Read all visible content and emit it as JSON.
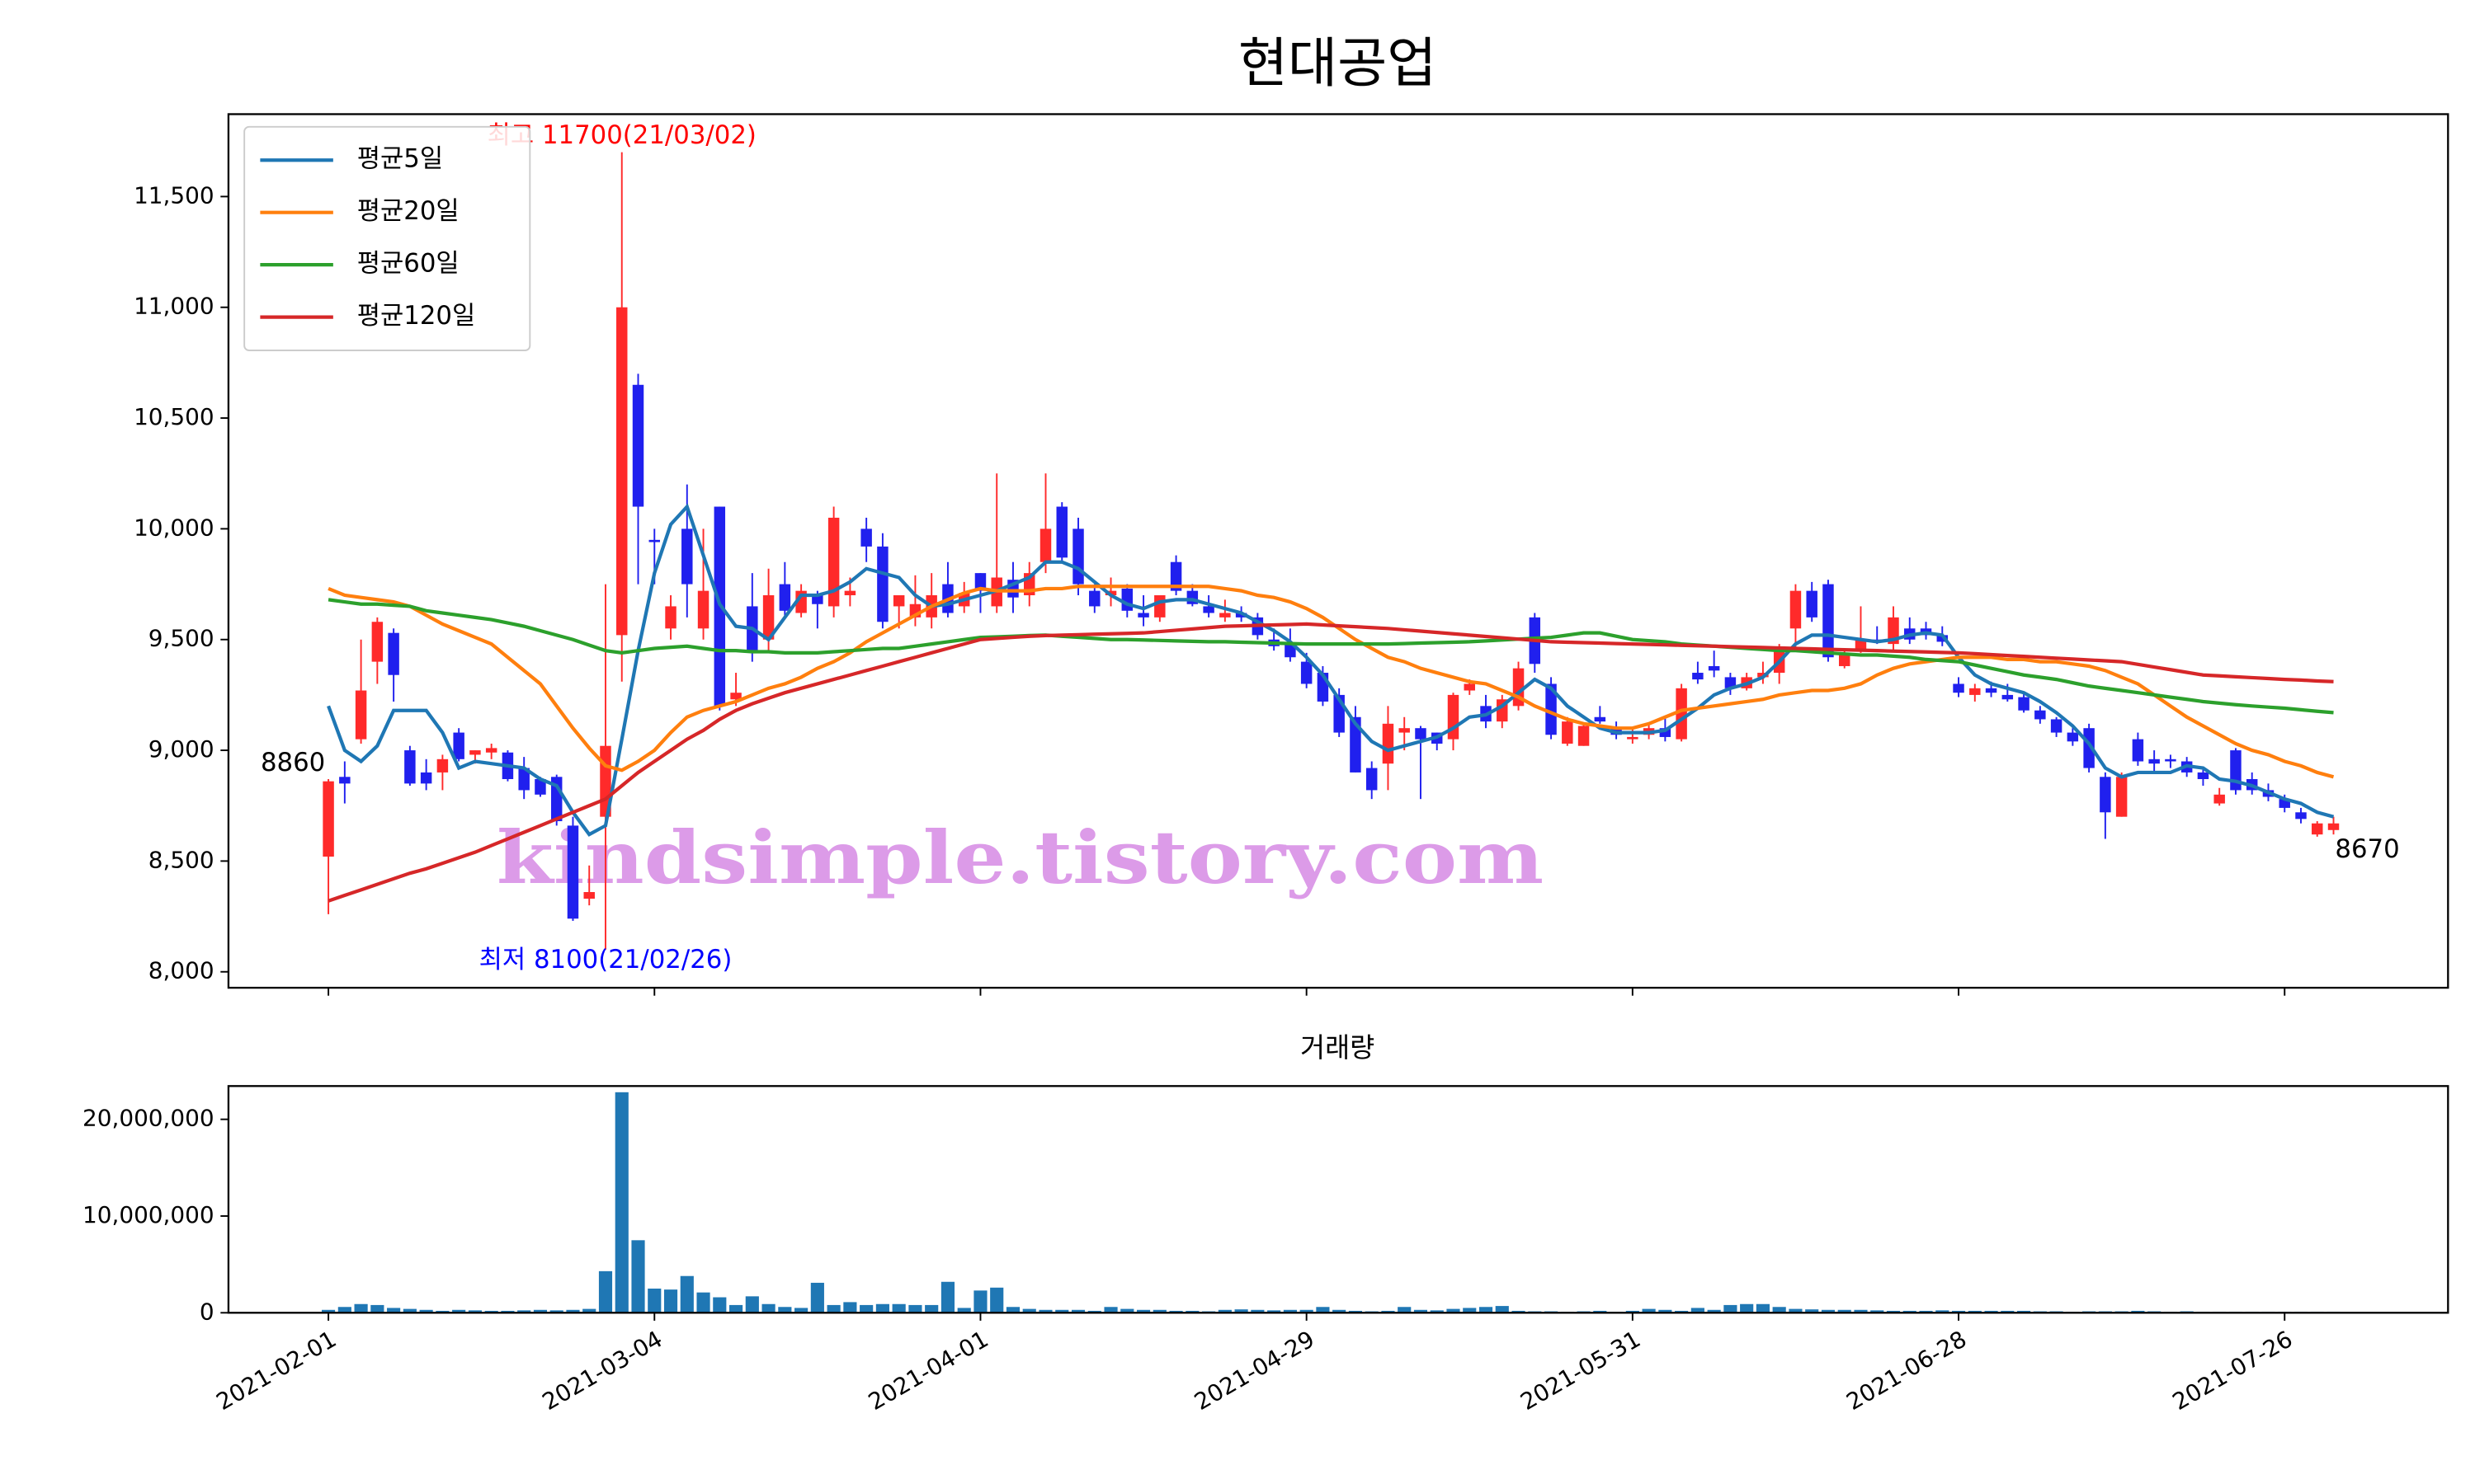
{
  "chart_data": {
    "type": "candlestick",
    "title": "현대공업",
    "categories": [
      "2021-02-01",
      null,
      null,
      null,
      null,
      null,
      null,
      null,
      null,
      null,
      null,
      null,
      null,
      null,
      null,
      null,
      null,
      null,
      null,
      null,
      "2021-03-04",
      null,
      null,
      null,
      null,
      null,
      null,
      null,
      null,
      null,
      null,
      null,
      null,
      null,
      null,
      null,
      null,
      null,
      null,
      null,
      "2021-04-01",
      null,
      null,
      null,
      null,
      null,
      null,
      null,
      null,
      null,
      null,
      null,
      null,
      null,
      null,
      null,
      null,
      null,
      null,
      null,
      "2021-04-29",
      null,
      null,
      null,
      null,
      null,
      null,
      null,
      null,
      null,
      null,
      null,
      null,
      null,
      null,
      null,
      null,
      null,
      null,
      null,
      "2021-05-31",
      null,
      null,
      null,
      null,
      null,
      null,
      null,
      null,
      null,
      null,
      null,
      null,
      null,
      null,
      null,
      null,
      null,
      null,
      null,
      "2021-06-28",
      null,
      null,
      null,
      null,
      null,
      null,
      null,
      null,
      null,
      null,
      null,
      null,
      null,
      null,
      null,
      null,
      null,
      null,
      null,
      "2021-07-26",
      null,
      null,
      null
    ],
    "open": [
      8520,
      8880,
      9050,
      9400,
      9530,
      9000,
      8900,
      8900,
      9080,
      8980,
      8990,
      8990,
      8920,
      8870,
      8880,
      8660,
      8330,
      8700,
      9520,
      10650,
      9950,
      9550,
      10000,
      9550,
      10100,
      9230,
      9650,
      9500,
      9750,
      9620,
      9700,
      9650,
      9700,
      10000,
      9920,
      9650,
      9600,
      9600,
      9750,
      9650,
      9800,
      9650,
      9770,
      9700,
      9850,
      10100,
      10000,
      9720,
      9700,
      9730,
      9620,
      9600,
      9850,
      9720,
      9650,
      9600,
      9620,
      9600,
      9500,
      9480,
      9400,
      9350,
      9250,
      9150,
      8920,
      8940,
      9080,
      9100,
      9080,
      9050,
      9270,
      9200,
      9130,
      9200,
      9600,
      9300,
      9030,
      9020,
      9150,
      9100,
      9050,
      9070,
      9100,
      9050,
      9350,
      9380,
      9330,
      9280,
      9330,
      9350,
      9550,
      9720,
      9750,
      9380,
      9450,
      9500,
      9480,
      9550,
      9550,
      9520,
      9300,
      9250,
      9280,
      9250,
      9240,
      9180,
      9140,
      9080,
      9100,
      8880,
      8700,
      9050,
      8960,
      8960,
      8950,
      8900,
      8760,
      9000,
      8870,
      8820,
      8780,
      8720,
      8620,
      8640
    ],
    "high": [
      8870,
      8950,
      9500,
      9600,
      9550,
      9020,
      8960,
      8980,
      9100,
      9000,
      9030,
      9000,
      8970,
      8880,
      8890,
      8700,
      8480,
      9750,
      11700,
      10700,
      10000,
      9700,
      10200,
      10000,
      10100,
      9350,
      9800,
      9820,
      9850,
      9750,
      9720,
      10100,
      9780,
      10050,
      9980,
      9700,
      9790,
      9800,
      9850,
      9760,
      9800,
      10250,
      9850,
      9850,
      10250,
      10120,
      10050,
      9750,
      9780,
      9750,
      9700,
      9700,
      9880,
      9750,
      9700,
      9680,
      9650,
      9620,
      9550,
      9550,
      9440,
      9380,
      9280,
      9200,
      8950,
      9200,
      9150,
      9110,
      9080,
      9260,
      9320,
      9250,
      9250,
      9400,
      9620,
      9330,
      9150,
      9120,
      9200,
      9130,
      9100,
      9120,
      9150,
      9300,
      9400,
      9450,
      9350,
      9350,
      9400,
      9480,
      9750,
      9760,
      9770,
      9450,
      9650,
      9560,
      9650,
      9600,
      9580,
      9560,
      9330,
      9300,
      9310,
      9300,
      9260,
      9200,
      9150,
      9100,
      9120,
      8900,
      8900,
      9080,
      9000,
      8980,
      8970,
      8920,
      8830,
      9010,
      8900,
      8850,
      8800,
      8740,
      8680,
      8700
    ],
    "low": [
      8260,
      8760,
      9030,
      9300,
      9220,
      8840,
      8820,
      8820,
      8950,
      8940,
      8960,
      8860,
      8780,
      8790,
      8660,
      8230,
      8300,
      8100,
      9310,
      9750,
      9750,
      9500,
      9600,
      9500,
      9180,
      9200,
      9400,
      9450,
      9600,
      9600,
      9550,
      9600,
      9650,
      9850,
      9550,
      9550,
      9560,
      9550,
      9600,
      9620,
      9620,
      9620,
      9620,
      9650,
      9800,
      9850,
      9700,
      9620,
      9650,
      9600,
      9560,
      9580,
      9700,
      9650,
      9600,
      9580,
      9580,
      9500,
      9450,
      9400,
      9280,
      9200,
      9060,
      8900,
      8780,
      8820,
      9000,
      8780,
      9000,
      9000,
      9250,
      9100,
      9100,
      9180,
      9350,
      9050,
      9020,
      9020,
      9120,
      9050,
      9030,
      9050,
      9040,
      9040,
      9300,
      9330,
      9250,
      9270,
      9300,
      9300,
      9450,
      9580,
      9400,
      9370,
      9440,
      9480,
      9450,
      9480,
      9500,
      9470,
      9240,
      9220,
      9240,
      9220,
      9170,
      9120,
      9060,
      9020,
      8900,
      8600,
      8700,
      8930,
      8900,
      8920,
      8880,
      8840,
      8750,
      8800,
      8800,
      8770,
      8720,
      8670,
      8610,
      8620
    ],
    "close": [
      8860,
      8850,
      9270,
      9580,
      9340,
      8850,
      8850,
      8960,
      8960,
      9000,
      9010,
      8870,
      8820,
      8800,
      8680,
      8240,
      8360,
      9020,
      11000,
      10100,
      9940,
      9650,
      9750,
      9720,
      9200,
      9260,
      9450,
      9700,
      9630,
      9720,
      9660,
      10050,
      9720,
      9920,
      9580,
      9700,
      9660,
      9700,
      9620,
      9710,
      9720,
      9780,
      9690,
      9800,
      10000,
      9870,
      9750,
      9650,
      9720,
      9630,
      9600,
      9700,
      9720,
      9660,
      9620,
      9620,
      9600,
      9520,
      9470,
      9420,
      9300,
      9220,
      9080,
      8900,
      8820,
      9120,
      9100,
      9050,
      9030,
      9250,
      9300,
      9130,
      9230,
      9370,
      9390,
      9070,
      9130,
      9110,
      9130,
      9070,
      9060,
      9100,
      9060,
      9280,
      9320,
      9360,
      9280,
      9330,
      9350,
      9450,
      9720,
      9600,
      9420,
      9430,
      9500,
      9490,
      9600,
      9500,
      9520,
      9490,
      9260,
      9280,
      9260,
      9230,
      9180,
      9140,
      9080,
      9040,
      8920,
      8720,
      8880,
      8950,
      8940,
      8950,
      8900,
      8870,
      8800,
      8820,
      8820,
      8790,
      8740,
      8690,
      8670,
      8670
    ],
    "up_color": "#ff2a2a",
    "down_color": "#2020ee",
    "series": [
      {
        "name": "평균5일",
        "color": "#1f77b4",
        "values": [
          9200,
          9000,
          8950,
          9020,
          9180,
          9180,
          9180,
          9080,
          8920,
          8950,
          8940,
          8930,
          8920,
          8870,
          8840,
          8720,
          8620,
          8660,
          9050,
          9450,
          9800,
          10020,
          10100,
          9880,
          9660,
          9560,
          9550,
          9500,
          9600,
          9700,
          9700,
          9720,
          9760,
          9820,
          9800,
          9780,
          9700,
          9650,
          9660,
          9680,
          9700,
          9720,
          9750,
          9780,
          9850,
          9850,
          9820,
          9760,
          9700,
          9660,
          9640,
          9670,
          9680,
          9680,
          9660,
          9640,
          9620,
          9580,
          9540,
          9490,
          9420,
          9340,
          9230,
          9120,
          9040,
          9000,
          9020,
          9040,
          9060,
          9100,
          9150,
          9160,
          9200,
          9260,
          9320,
          9280,
          9200,
          9150,
          9100,
          9080,
          9080,
          9080,
          9090,
          9140,
          9190,
          9250,
          9280,
          9300,
          9330,
          9400,
          9480,
          9520,
          9520,
          9510,
          9500,
          9490,
          9500,
          9520,
          9530,
          9520,
          9420,
          9340,
          9300,
          9280,
          9260,
          9220,
          9170,
          9110,
          9030,
          8920,
          8880,
          8900,
          8900,
          8900,
          8930,
          8920,
          8870,
          8860,
          8840,
          8810,
          8780,
          8760,
          8720,
          8700
        ]
      },
      {
        "name": "평균20일",
        "color": "#ff7f0e",
        "values": [
          9730,
          9700,
          9690,
          9680,
          9670,
          9650,
          9610,
          9570,
          9540,
          9510,
          9480,
          9420,
          9360,
          9300,
          9200,
          9100,
          9010,
          8930,
          8910,
          8950,
          9000,
          9080,
          9150,
          9180,
          9200,
          9220,
          9250,
          9280,
          9300,
          9330,
          9370,
          9400,
          9440,
          9490,
          9530,
          9570,
          9610,
          9650,
          9680,
          9710,
          9730,
          9720,
          9720,
          9720,
          9730,
          9730,
          9740,
          9740,
          9740,
          9740,
          9740,
          9740,
          9740,
          9740,
          9740,
          9730,
          9720,
          9700,
          9690,
          9670,
          9640,
          9600,
          9550,
          9500,
          9460,
          9420,
          9400,
          9370,
          9350,
          9330,
          9310,
          9300,
          9270,
          9240,
          9200,
          9170,
          9140,
          9120,
          9110,
          9100,
          9100,
          9120,
          9150,
          9180,
          9190,
          9200,
          9210,
          9220,
          9230,
          9250,
          9260,
          9270,
          9270,
          9280,
          9300,
          9340,
          9370,
          9390,
          9400,
          9410,
          9420,
          9420,
          9420,
          9410,
          9410,
          9400,
          9400,
          9390,
          9380,
          9360,
          9330,
          9300,
          9250,
          9200,
          9150,
          9110,
          9070,
          9030,
          9000,
          8980,
          8950,
          8930,
          8900,
          8880
        ]
      },
      {
        "name": "평균60일",
        "color": "#2ca02c",
        "values": [
          9680,
          9670,
          9660,
          9660,
          9655,
          9650,
          9630,
          9620,
          9610,
          9600,
          9590,
          9575,
          9560,
          9540,
          9520,
          9500,
          9475,
          9450,
          9440,
          9450,
          9460,
          9465,
          9470,
          9460,
          9450,
          9450,
          9445,
          9445,
          9440,
          9440,
          9440,
          9445,
          9450,
          9455,
          9460,
          9460,
          9470,
          9480,
          9490,
          9500,
          9510,
          9512,
          9515,
          9518,
          9520,
          9515,
          9510,
          9505,
          9500,
          9500,
          9498,
          9496,
          9494,
          9492,
          9490,
          9490,
          9488,
          9486,
          9484,
          9482,
          9480,
          9480,
          9480,
          9480,
          9480,
          9480,
          9482,
          9484,
          9486,
          9488,
          9490,
          9494,
          9498,
          9502,
          9506,
          9510,
          9520,
          9530,
          9530,
          9515,
          9500,
          9495,
          9490,
          9480,
          9475,
          9470,
          9465,
          9460,
          9455,
          9450,
          9450,
          9445,
          9440,
          9435,
          9430,
          9430,
          9425,
          9420,
          9410,
          9405,
          9400,
          9385,
          9370,
          9355,
          9340,
          9330,
          9320,
          9305,
          9290,
          9280,
          9270,
          9260,
          9250,
          9240,
          9230,
          9220,
          9213,
          9206,
          9200,
          9195,
          9190,
          9183,
          9176,
          9170
        ]
      },
      {
        "name": "평균120일",
        "color": "#d62728",
        "values": [
          8320,
          8345,
          8370,
          8395,
          8420,
          8445,
          8465,
          8490,
          8515,
          8540,
          8570,
          8600,
          8630,
          8660,
          8690,
          8720,
          8750,
          8780,
          8840,
          8900,
          8950,
          9000,
          9050,
          9090,
          9140,
          9180,
          9210,
          9235,
          9260,
          9280,
          9300,
          9320,
          9340,
          9360,
          9380,
          9400,
          9420,
          9440,
          9460,
          9480,
          9500,
          9505,
          9510,
          9515,
          9518,
          9520,
          9522,
          9524,
          9526,
          9528,
          9530,
          9536,
          9542,
          9548,
          9554,
          9560,
          9562,
          9564,
          9566,
          9568,
          9570,
          9566,
          9562,
          9558,
          9554,
          9550,
          9544,
          9538,
          9532,
          9526,
          9520,
          9514,
          9508,
          9502,
          9496,
          9490,
          9488,
          9486,
          9484,
          9482,
          9480,
          9478,
          9476,
          9474,
          9472,
          9470,
          9468,
          9466,
          9464,
          9462,
          9460,
          9458,
          9456,
          9454,
          9452,
          9450,
          9448,
          9446,
          9444,
          9442,
          9440,
          9436,
          9432,
          9428,
          9424,
          9420,
          9416,
          9412,
          9408,
          9404,
          9400,
          9388,
          9376,
          9364,
          9352,
          9340,
          9336,
          9332,
          9328,
          9324,
          9320,
          9317,
          9313,
          9310
        ]
      }
    ],
    "legend": "upper left",
    "ylim": [
      7928,
      11872
    ],
    "yticks": [
      {
        "value": 8000,
        "label": "8,000"
      },
      {
        "value": 8500,
        "label": "8,500"
      },
      {
        "value": 9000,
        "label": "9,000"
      },
      {
        "value": 9500,
        "label": "9,500"
      },
      {
        "value": 10000,
        "label": "10,000"
      },
      {
        "value": 10500,
        "label": "10,500"
      },
      {
        "value": 11000,
        "label": "11,000"
      },
      {
        "value": 11500,
        "label": "11,500"
      }
    ],
    "annotations": [
      {
        "text": "최고 11700(21/03/02)",
        "color": "#ff0000",
        "anchor": "highest"
      },
      {
        "text": "최저 8100(21/02/26)",
        "color": "#0000ff",
        "anchor": "lowest"
      },
      {
        "text": "8860",
        "color": "#000000",
        "anchor": "first"
      },
      {
        "text": "8670",
        "color": "#000000",
        "anchor": "last"
      }
    ],
    "watermark": {
      "text": "kindsimple.tistory.com",
      "color": "#dc9be8"
    },
    "volume": {
      "title": "거래량",
      "color": "#1f77b4",
      "values": [
        300000,
        600000,
        900000,
        800000,
        500000,
        400000,
        300000,
        200000,
        300000,
        250000,
        200000,
        200000,
        250000,
        300000,
        250000,
        300000,
        400000,
        4300000,
        22800000,
        7500000,
        2500000,
        2400000,
        3800000,
        2100000,
        1600000,
        800000,
        1700000,
        900000,
        600000,
        500000,
        3100000,
        800000,
        1100000,
        800000,
        900000,
        900000,
        800000,
        800000,
        3200000,
        500000,
        2300000,
        2600000,
        600000,
        400000,
        300000,
        300000,
        300000,
        200000,
        600000,
        400000,
        300000,
        300000,
        200000,
        200000,
        150000,
        300000,
        350000,
        300000,
        250000,
        300000,
        300000,
        600000,
        300000,
        200000,
        150000,
        200000,
        600000,
        300000,
        250000,
        400000,
        500000,
        600000,
        700000,
        200000,
        150000,
        150000,
        100000,
        150000,
        200000,
        100000,
        200000,
        400000,
        300000,
        200000,
        500000,
        300000,
        800000,
        900000,
        900000,
        600000,
        400000,
        350000,
        300000,
        300000,
        300000,
        250000,
        200000,
        200000,
        200000,
        250000,
        200000,
        200000,
        200000,
        200000,
        200000,
        150000,
        150000,
        100000,
        150000,
        150000,
        150000,
        200000,
        150000,
        100000,
        150000,
        100000,
        100000,
        100000,
        100000,
        100000,
        100000,
        100000,
        100000,
        100000
      ],
      "ylim": [
        0,
        23440000
      ],
      "yticks": [
        0,
        {
          "value": 10000000,
          "label": "10,000,000"
        },
        {
          "value": 20000000,
          "label": "20,000,000"
        }
      ]
    }
  }
}
